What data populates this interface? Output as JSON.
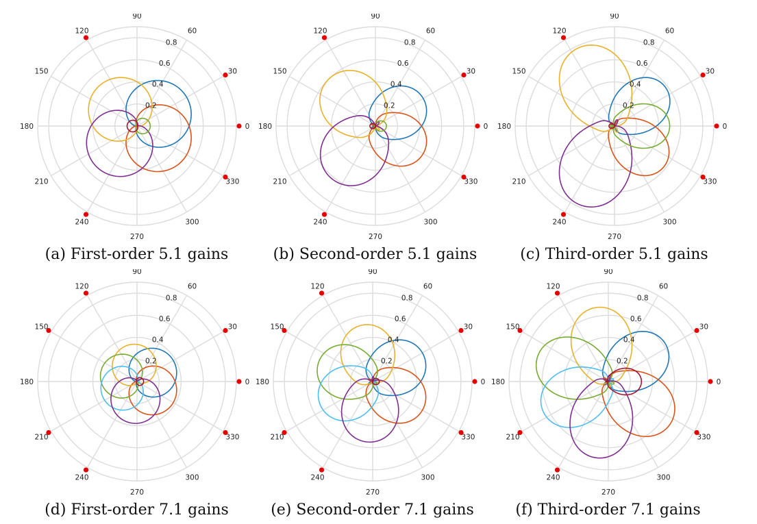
{
  "figure": {
    "colors": {
      "grid": "#dcdcdc",
      "speaker": "#e60000",
      "blue": "#1f77b4",
      "orange": "#d95319",
      "yellow": "#e8b12a",
      "purple": "#7e2f8e",
      "green": "#77ac30",
      "cyan": "#4dbeee",
      "darkred": "#a2142f"
    }
  },
  "chart_data": [
    {
      "type": "polar-line",
      "caption": "(a) First-order 5.1 gains",
      "radial_ticks": [
        "0.2",
        "0.4",
        "0.6",
        "0.8"
      ],
      "angular_ticks": [
        "0",
        "30",
        "60",
        "90",
        "120",
        "150",
        "180",
        "210",
        "240",
        "270",
        "300",
        "330"
      ],
      "rmax": 0.9,
      "speakers_deg": [
        0,
        30,
        120,
        240,
        330
      ],
      "order": 1,
      "series": [
        {
          "color": "blue",
          "peak_deg": 30,
          "gain": 0.52
        },
        {
          "color": "orange",
          "peak_deg": 330,
          "gain": 0.52
        },
        {
          "color": "yellow",
          "peak_deg": 135,
          "gain": 0.5
        },
        {
          "color": "purple",
          "peak_deg": 225,
          "gain": 0.52
        },
        {
          "color": "green",
          "peak_deg": 0,
          "gain": 0.12
        },
        {
          "color": "darkred",
          "peak_deg": 180,
          "gain": 0.09
        }
      ]
    },
    {
      "type": "polar-line",
      "caption": "(b) Second-order 5.1 gains",
      "radial_ticks": [
        "0.2",
        "0.4",
        "0.6",
        "0.8"
      ],
      "angular_ticks": [
        "0",
        "30",
        "60",
        "90",
        "120",
        "150",
        "180",
        "210",
        "240",
        "270",
        "300",
        "330"
      ],
      "rmax": 0.9,
      "speakers_deg": [
        0,
        30,
        120,
        240,
        330
      ],
      "order": 2,
      "series": [
        {
          "color": "blue",
          "peak_deg": 30,
          "gain": 0.5
        },
        {
          "color": "orange",
          "peak_deg": 330,
          "gain": 0.5
        },
        {
          "color": "yellow",
          "peak_deg": 135,
          "gain": 0.6
        },
        {
          "color": "purple",
          "peak_deg": 230,
          "gain": 0.62
        },
        {
          "color": "green",
          "peak_deg": 0,
          "gain": 0.1
        },
        {
          "color": "darkred",
          "peak_deg": 180,
          "gain": 0.05
        }
      ]
    },
    {
      "type": "polar-line",
      "caption": "(c) Third-order 5.1 gains",
      "radial_ticks": [
        "0.2",
        "0.4",
        "0.6",
        "0.8"
      ],
      "angular_ticks": [
        "0",
        "30",
        "60",
        "90",
        "120",
        "150",
        "180",
        "210",
        "240",
        "270",
        "300",
        "330"
      ],
      "rmax": 0.9,
      "speakers_deg": [
        0,
        30,
        120,
        240,
        330
      ],
      "order": 3,
      "series": [
        {
          "color": "blue",
          "peak_deg": 38,
          "gain": 0.58
        },
        {
          "color": "orange",
          "peak_deg": 320,
          "gain": 0.58
        },
        {
          "color": "yellow",
          "peak_deg": 115,
          "gain": 0.78
        },
        {
          "color": "purple",
          "peak_deg": 245,
          "gain": 0.78
        },
        {
          "color": "green",
          "peak_deg": 0,
          "gain": 0.5
        },
        {
          "color": "darkred",
          "peak_deg": 180,
          "gain": 0.05
        }
      ]
    },
    {
      "type": "polar-line",
      "caption": "(d) First-order 7.1 gains",
      "radial_ticks": [
        "0.2",
        "0.4",
        "0.6",
        "0.8"
      ],
      "angular_ticks": [
        "0",
        "30",
        "60",
        "90",
        "120",
        "150",
        "180",
        "210",
        "240",
        "270",
        "300",
        "330"
      ],
      "rmax": 0.9,
      "speakers_deg": [
        0,
        30,
        120,
        150,
        210,
        240,
        330
      ],
      "order": 1,
      "series": [
        {
          "color": "blue",
          "peak_deg": 30,
          "gain": 0.38
        },
        {
          "color": "orange",
          "peak_deg": 330,
          "gain": 0.38
        },
        {
          "color": "yellow",
          "peak_deg": 100,
          "gain": 0.34
        },
        {
          "color": "green",
          "peak_deg": 160,
          "gain": 0.34
        },
        {
          "color": "cyan",
          "peak_deg": 205,
          "gain": 0.34
        },
        {
          "color": "purple",
          "peak_deg": 265,
          "gain": 0.38
        },
        {
          "color": "darkred",
          "peak_deg": 0,
          "gain": 0.06
        }
      ]
    },
    {
      "type": "polar-line",
      "caption": "(e) Second-order 7.1 gains",
      "radial_ticks": [
        "0.2",
        "0.4",
        "0.6",
        "0.8"
      ],
      "angular_ticks": [
        "0",
        "30",
        "60",
        "90",
        "120",
        "150",
        "180",
        "210",
        "240",
        "270",
        "300",
        "330"
      ],
      "rmax": 0.9,
      "speakers_deg": [
        0,
        30,
        120,
        150,
        210,
        240,
        330
      ],
      "order": 2,
      "series": [
        {
          "color": "blue",
          "peak_deg": 30,
          "gain": 0.52
        },
        {
          "color": "orange",
          "peak_deg": 330,
          "gain": 0.52
        },
        {
          "color": "yellow",
          "peak_deg": 100,
          "gain": 0.52
        },
        {
          "color": "green",
          "peak_deg": 160,
          "gain": 0.52
        },
        {
          "color": "cyan",
          "peak_deg": 205,
          "gain": 0.52
        },
        {
          "color": "purple",
          "peak_deg": 265,
          "gain": 0.55
        },
        {
          "color": "darkred",
          "peak_deg": 0,
          "gain": 0.06
        }
      ]
    },
    {
      "type": "polar-line",
      "caption": "(f) Third-order 7.1 gains",
      "radial_ticks": [
        "0.2",
        "0.4",
        "0.6",
        "0.8"
      ],
      "angular_ticks": [
        "0",
        "30",
        "60",
        "90",
        "120",
        "150",
        "180",
        "210",
        "240",
        "270",
        "300",
        "330"
      ],
      "rmax": 0.9,
      "speakers_deg": [
        0,
        30,
        120,
        150,
        210,
        240,
        330
      ],
      "order": 3,
      "series": [
        {
          "color": "blue",
          "peak_deg": 35,
          "gain": 0.62
        },
        {
          "color": "orange",
          "peak_deg": 325,
          "gain": 0.68
        },
        {
          "color": "yellow",
          "peak_deg": 100,
          "gain": 0.68
        },
        {
          "color": "green",
          "peak_deg": 160,
          "gain": 0.68
        },
        {
          "color": "cyan",
          "peak_deg": 205,
          "gain": 0.65
        },
        {
          "color": "purple",
          "peak_deg": 260,
          "gain": 0.7
        },
        {
          "color": "darkred",
          "peak_deg": 0,
          "gain": 0.3
        }
      ]
    }
  ]
}
